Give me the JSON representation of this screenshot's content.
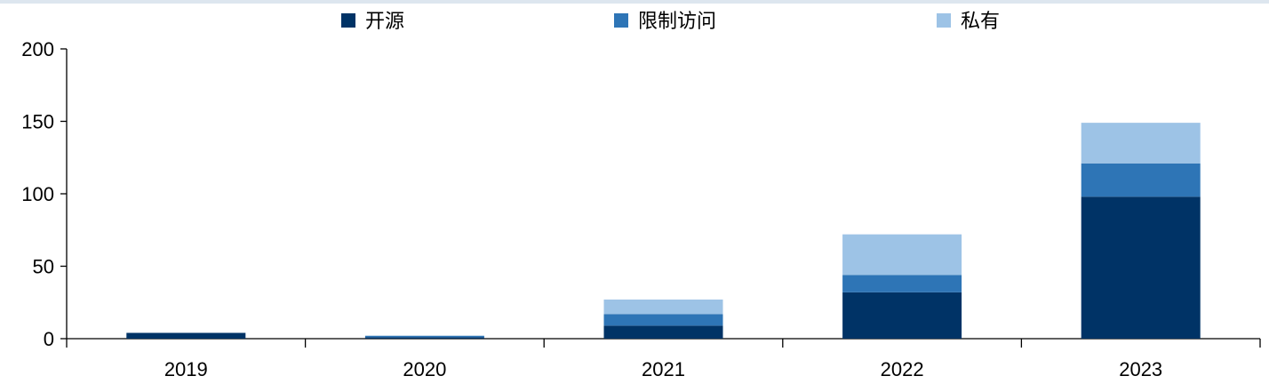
{
  "chart_data": {
    "type": "bar",
    "stacked": true,
    "categories": [
      "2019",
      "2020",
      "2021",
      "2022",
      "2023"
    ],
    "series": [
      {
        "name": "开源",
        "color": "#003366",
        "values": [
          4,
          1,
          9,
          32,
          98
        ]
      },
      {
        "name": "限制访问",
        "color": "#2e75b6",
        "values": [
          0,
          1,
          8,
          12,
          23
        ]
      },
      {
        "name": "私有",
        "color": "#9dc3e6",
        "values": [
          0,
          0,
          10,
          28,
          28
        ]
      }
    ],
    "ylim": [
      0,
      200
    ],
    "yticks": [
      "0",
      "50",
      "100",
      "150",
      "200"
    ],
    "legend_position": "top",
    "grid": false
  }
}
